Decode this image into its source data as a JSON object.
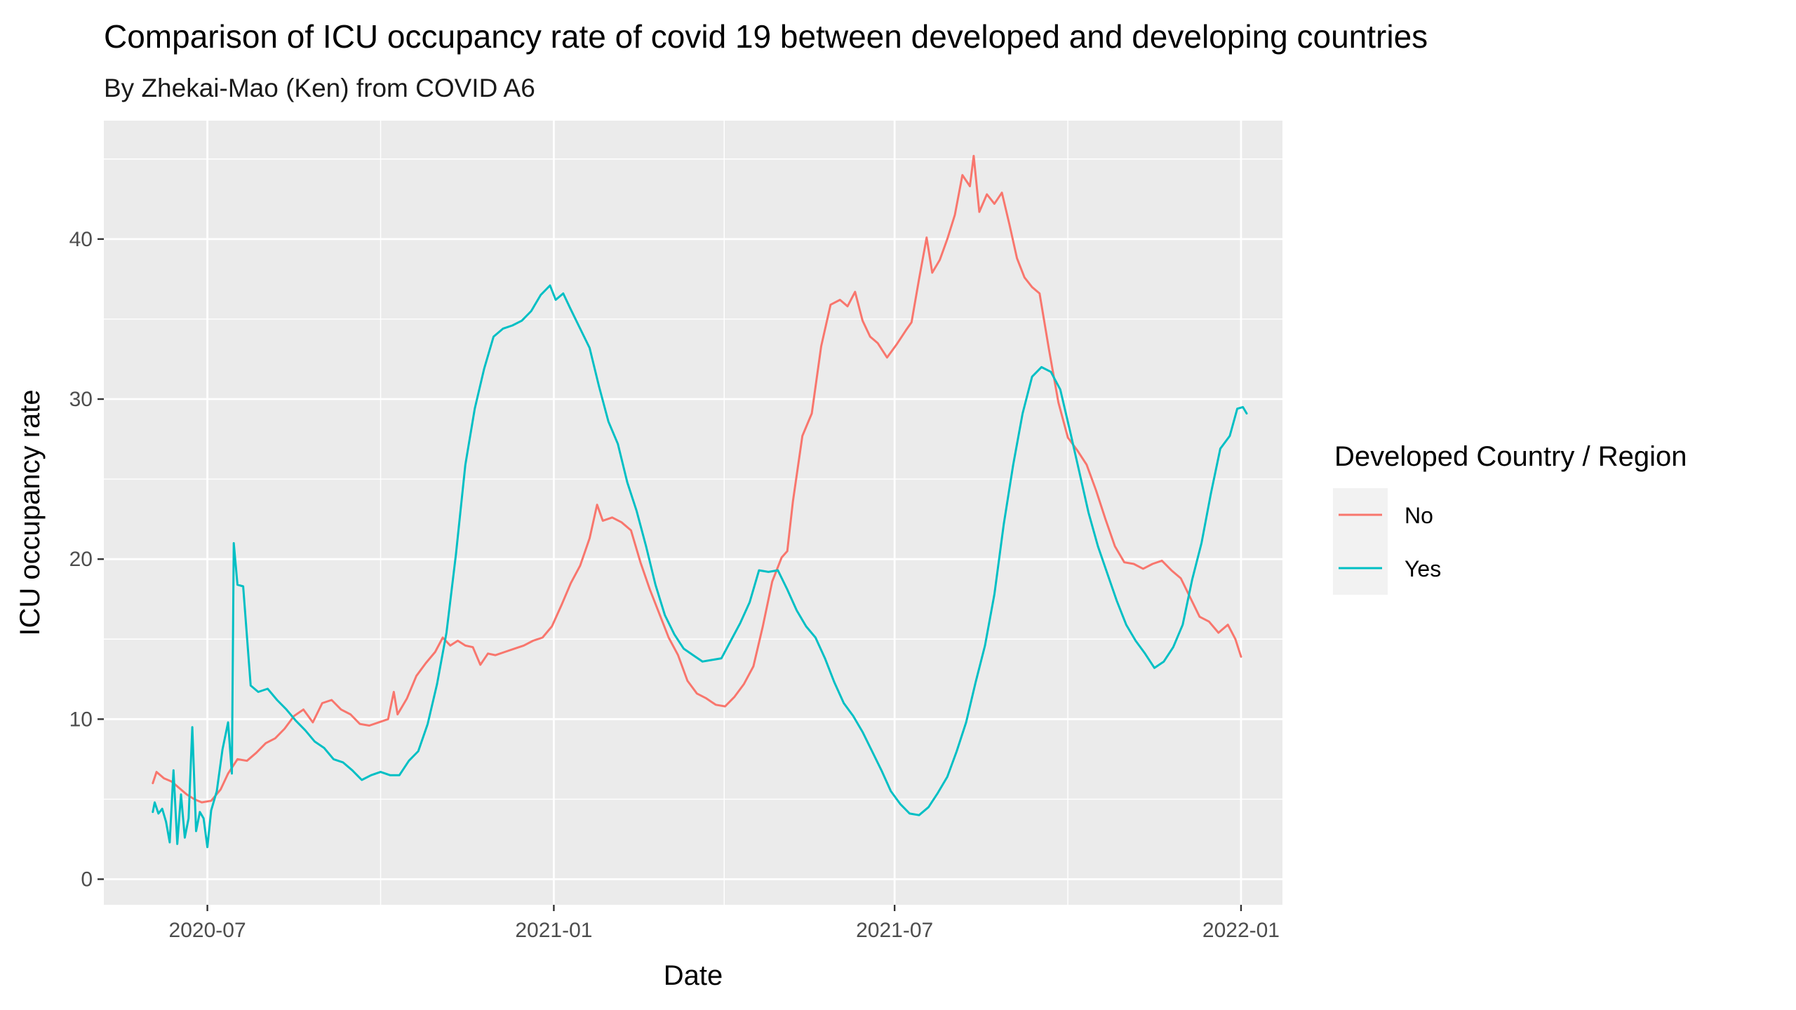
{
  "chart_data": {
    "type": "line",
    "title": "Comparison of ICU occupancy rate of covid 19 between developed and developing countries",
    "subtitle": "By Zhekai-Mao (Ken) from COVID A6",
    "xlabel": "Date",
    "ylabel": "ICU occupancy rate",
    "x_axis_type": "date",
    "xlim": [
      "2020-05-07",
      "2022-01-23"
    ],
    "ylim": [
      -1.6,
      47.4
    ],
    "x_ticks": [
      "2020-07-01",
      "2021-01-01",
      "2021-07-01",
      "2022-01-01"
    ],
    "x_tick_labels": [
      "2020-07",
      "2021-01",
      "2021-07",
      "2022-01"
    ],
    "y_ticks": [
      0,
      10,
      20,
      30,
      40
    ],
    "y_tick_labels": [
      "0",
      "10",
      "20",
      "30",
      "40"
    ],
    "grid": true,
    "legend": {
      "title": "Developed Country / Region",
      "position": "right",
      "entries": [
        "No",
        "Yes"
      ]
    },
    "series": [
      {
        "name": "No",
        "color": "#F8766D",
        "points": [
          [
            "2020-06-02",
            6.0
          ],
          [
            "2020-06-04",
            6.7
          ],
          [
            "2020-06-08",
            6.3
          ],
          [
            "2020-06-12",
            6.1
          ],
          [
            "2020-06-16",
            5.7
          ],
          [
            "2020-06-20",
            5.3
          ],
          [
            "2020-06-24",
            5.0
          ],
          [
            "2020-06-28",
            4.8
          ],
          [
            "2020-07-03",
            4.9
          ],
          [
            "2020-07-08",
            5.6
          ],
          [
            "2020-07-12",
            6.6
          ],
          [
            "2020-07-17",
            7.5
          ],
          [
            "2020-07-22",
            7.4
          ],
          [
            "2020-07-27",
            7.9
          ],
          [
            "2020-08-01",
            8.5
          ],
          [
            "2020-08-06",
            8.8
          ],
          [
            "2020-08-11",
            9.4
          ],
          [
            "2020-08-16",
            10.2
          ],
          [
            "2020-08-21",
            10.6
          ],
          [
            "2020-08-26",
            9.8
          ],
          [
            "2020-08-31",
            11.0
          ],
          [
            "2020-09-05",
            11.2
          ],
          [
            "2020-09-10",
            10.6
          ],
          [
            "2020-09-15",
            10.3
          ],
          [
            "2020-09-20",
            9.7
          ],
          [
            "2020-09-25",
            9.6
          ],
          [
            "2020-09-30",
            9.8
          ],
          [
            "2020-10-05",
            10.0
          ],
          [
            "2020-10-08",
            11.7
          ],
          [
            "2020-10-10",
            10.3
          ],
          [
            "2020-10-15",
            11.3
          ],
          [
            "2020-10-20",
            12.7
          ],
          [
            "2020-10-25",
            13.5
          ],
          [
            "2020-10-30",
            14.2
          ],
          [
            "2020-11-03",
            15.1
          ],
          [
            "2020-11-07",
            14.6
          ],
          [
            "2020-11-11",
            14.9
          ],
          [
            "2020-11-15",
            14.6
          ],
          [
            "2020-11-19",
            14.5
          ],
          [
            "2020-11-23",
            13.4
          ],
          [
            "2020-11-27",
            14.1
          ],
          [
            "2020-12-01",
            14.0
          ],
          [
            "2020-12-06",
            14.2
          ],
          [
            "2020-12-11",
            14.4
          ],
          [
            "2020-12-16",
            14.6
          ],
          [
            "2020-12-21",
            14.9
          ],
          [
            "2020-12-26",
            15.1
          ],
          [
            "2020-12-31",
            15.8
          ],
          [
            "2021-01-05",
            17.1
          ],
          [
            "2021-01-10",
            18.5
          ],
          [
            "2021-01-15",
            19.6
          ],
          [
            "2021-01-20",
            21.3
          ],
          [
            "2021-01-24",
            23.4
          ],
          [
            "2021-01-27",
            22.4
          ],
          [
            "2021-02-01",
            22.6
          ],
          [
            "2021-02-06",
            22.3
          ],
          [
            "2021-02-11",
            21.8
          ],
          [
            "2021-02-16",
            19.8
          ],
          [
            "2021-02-21",
            18.1
          ],
          [
            "2021-02-26",
            16.6
          ],
          [
            "2021-03-03",
            15.1
          ],
          [
            "2021-03-08",
            14.0
          ],
          [
            "2021-03-13",
            12.4
          ],
          [
            "2021-03-18",
            11.6
          ],
          [
            "2021-03-23",
            11.3
          ],
          [
            "2021-03-28",
            10.9
          ],
          [
            "2021-04-02",
            10.8
          ],
          [
            "2021-04-07",
            11.4
          ],
          [
            "2021-04-12",
            12.2
          ],
          [
            "2021-04-17",
            13.3
          ],
          [
            "2021-04-22",
            15.8
          ],
          [
            "2021-04-27",
            18.6
          ],
          [
            "2021-05-02",
            20.1
          ],
          [
            "2021-05-05",
            20.5
          ],
          [
            "2021-05-08",
            23.6
          ],
          [
            "2021-05-13",
            27.7
          ],
          [
            "2021-05-18",
            29.1
          ],
          [
            "2021-05-23",
            33.3
          ],
          [
            "2021-05-28",
            35.9
          ],
          [
            "2021-06-02",
            36.2
          ],
          [
            "2021-06-06",
            35.8
          ],
          [
            "2021-06-10",
            36.7
          ],
          [
            "2021-06-14",
            34.9
          ],
          [
            "2021-06-18",
            33.9
          ],
          [
            "2021-06-22",
            33.5
          ],
          [
            "2021-06-27",
            32.6
          ],
          [
            "2021-07-02",
            33.4
          ],
          [
            "2021-07-07",
            34.3
          ],
          [
            "2021-07-10",
            34.8
          ],
          [
            "2021-07-14",
            37.5
          ],
          [
            "2021-07-18",
            40.1
          ],
          [
            "2021-07-21",
            37.9
          ],
          [
            "2021-07-25",
            38.7
          ],
          [
            "2021-07-29",
            40.0
          ],
          [
            "2021-08-02",
            41.5
          ],
          [
            "2021-08-06",
            44.0
          ],
          [
            "2021-08-10",
            43.3
          ],
          [
            "2021-08-12",
            45.2
          ],
          [
            "2021-08-15",
            41.7
          ],
          [
            "2021-08-19",
            42.8
          ],
          [
            "2021-08-23",
            42.2
          ],
          [
            "2021-08-27",
            42.9
          ],
          [
            "2021-08-31",
            40.9
          ],
          [
            "2021-09-04",
            38.8
          ],
          [
            "2021-09-08",
            37.6
          ],
          [
            "2021-09-12",
            37.0
          ],
          [
            "2021-09-16",
            36.6
          ],
          [
            "2021-09-21",
            33.1
          ],
          [
            "2021-09-26",
            29.8
          ],
          [
            "2021-10-01",
            27.6
          ],
          [
            "2021-10-06",
            26.8
          ],
          [
            "2021-10-11",
            25.9
          ],
          [
            "2021-10-16",
            24.3
          ],
          [
            "2021-10-21",
            22.5
          ],
          [
            "2021-10-26",
            20.8
          ],
          [
            "2021-10-31",
            19.8
          ],
          [
            "2021-11-05",
            19.7
          ],
          [
            "2021-11-10",
            19.4
          ],
          [
            "2021-11-15",
            19.7
          ],
          [
            "2021-11-20",
            19.9
          ],
          [
            "2021-11-25",
            19.3
          ],
          [
            "2021-11-30",
            18.8
          ],
          [
            "2021-12-05",
            17.6
          ],
          [
            "2021-12-10",
            16.4
          ],
          [
            "2021-12-15",
            16.1
          ],
          [
            "2021-12-20",
            15.4
          ],
          [
            "2021-12-25",
            15.9
          ],
          [
            "2021-12-29",
            15.0
          ],
          [
            "2022-01-01",
            13.9
          ]
        ]
      },
      {
        "name": "Yes",
        "color": "#00BFC4",
        "points": [
          [
            "2020-06-02",
            4.2
          ],
          [
            "2020-06-03",
            4.8
          ],
          [
            "2020-06-05",
            4.1
          ],
          [
            "2020-06-07",
            4.4
          ],
          [
            "2020-06-09",
            3.6
          ],
          [
            "2020-06-11",
            2.3
          ],
          [
            "2020-06-13",
            6.8
          ],
          [
            "2020-06-15",
            2.2
          ],
          [
            "2020-06-17",
            5.3
          ],
          [
            "2020-06-19",
            2.6
          ],
          [
            "2020-06-21",
            3.8
          ],
          [
            "2020-06-23",
            9.5
          ],
          [
            "2020-06-25",
            3.0
          ],
          [
            "2020-06-27",
            4.2
          ],
          [
            "2020-06-29",
            3.8
          ],
          [
            "2020-07-01",
            2.0
          ],
          [
            "2020-07-03",
            4.3
          ],
          [
            "2020-07-06",
            5.5
          ],
          [
            "2020-07-09",
            8.1
          ],
          [
            "2020-07-12",
            9.8
          ],
          [
            "2020-07-14",
            6.6
          ],
          [
            "2020-07-15",
            21.0
          ],
          [
            "2020-07-17",
            18.4
          ],
          [
            "2020-07-20",
            18.3
          ],
          [
            "2020-07-24",
            12.1
          ],
          [
            "2020-07-28",
            11.7
          ],
          [
            "2020-08-02",
            11.9
          ],
          [
            "2020-08-07",
            11.2
          ],
          [
            "2020-08-12",
            10.6
          ],
          [
            "2020-08-17",
            9.9
          ],
          [
            "2020-08-22",
            9.3
          ],
          [
            "2020-08-27",
            8.6
          ],
          [
            "2020-09-01",
            8.2
          ],
          [
            "2020-09-06",
            7.5
          ],
          [
            "2020-09-11",
            7.3
          ],
          [
            "2020-09-16",
            6.8
          ],
          [
            "2020-09-21",
            6.2
          ],
          [
            "2020-09-26",
            6.5
          ],
          [
            "2020-10-01",
            6.7
          ],
          [
            "2020-10-06",
            6.5
          ],
          [
            "2020-10-11",
            6.5
          ],
          [
            "2020-10-16",
            7.4
          ],
          [
            "2020-10-21",
            8.0
          ],
          [
            "2020-10-26",
            9.7
          ],
          [
            "2020-10-31",
            12.2
          ],
          [
            "2020-11-05",
            15.4
          ],
          [
            "2020-11-10",
            20.3
          ],
          [
            "2020-11-15",
            25.9
          ],
          [
            "2020-11-20",
            29.4
          ],
          [
            "2020-11-25",
            31.9
          ],
          [
            "2020-11-30",
            33.9
          ],
          [
            "2020-12-05",
            34.4
          ],
          [
            "2020-12-10",
            34.6
          ],
          [
            "2020-12-15",
            34.9
          ],
          [
            "2020-12-20",
            35.5
          ],
          [
            "2020-12-25",
            36.5
          ],
          [
            "2020-12-30",
            37.1
          ],
          [
            "2021-01-02",
            36.2
          ],
          [
            "2021-01-06",
            36.6
          ],
          [
            "2021-01-10",
            35.6
          ],
          [
            "2021-01-15",
            34.4
          ],
          [
            "2021-01-20",
            33.2
          ],
          [
            "2021-01-25",
            30.8
          ],
          [
            "2021-01-30",
            28.6
          ],
          [
            "2021-02-04",
            27.2
          ],
          [
            "2021-02-09",
            24.8
          ],
          [
            "2021-02-14",
            23.0
          ],
          [
            "2021-02-19",
            20.8
          ],
          [
            "2021-02-24",
            18.4
          ],
          [
            "2021-03-01",
            16.5
          ],
          [
            "2021-03-06",
            15.3
          ],
          [
            "2021-03-11",
            14.4
          ],
          [
            "2021-03-16",
            14.0
          ],
          [
            "2021-03-21",
            13.6
          ],
          [
            "2021-03-26",
            13.7
          ],
          [
            "2021-03-31",
            13.8
          ],
          [
            "2021-04-05",
            14.9
          ],
          [
            "2021-04-10",
            16.0
          ],
          [
            "2021-04-15",
            17.3
          ],
          [
            "2021-04-20",
            19.3
          ],
          [
            "2021-04-25",
            19.2
          ],
          [
            "2021-04-30",
            19.3
          ],
          [
            "2021-05-05",
            18.1
          ],
          [
            "2021-05-10",
            16.8
          ],
          [
            "2021-05-15",
            15.8
          ],
          [
            "2021-05-20",
            15.1
          ],
          [
            "2021-05-25",
            13.8
          ],
          [
            "2021-05-30",
            12.3
          ],
          [
            "2021-06-04",
            11.0
          ],
          [
            "2021-06-09",
            10.2
          ],
          [
            "2021-06-14",
            9.2
          ],
          [
            "2021-06-19",
            8.0
          ],
          [
            "2021-06-24",
            6.8
          ],
          [
            "2021-06-29",
            5.5
          ],
          [
            "2021-07-04",
            4.7
          ],
          [
            "2021-07-09",
            4.1
          ],
          [
            "2021-07-14",
            4.0
          ],
          [
            "2021-07-19",
            4.5
          ],
          [
            "2021-07-24",
            5.4
          ],
          [
            "2021-07-29",
            6.4
          ],
          [
            "2021-08-03",
            8.0
          ],
          [
            "2021-08-08",
            9.8
          ],
          [
            "2021-08-13",
            12.3
          ],
          [
            "2021-08-18",
            14.6
          ],
          [
            "2021-08-23",
            17.8
          ],
          [
            "2021-08-28",
            22.2
          ],
          [
            "2021-09-02",
            25.9
          ],
          [
            "2021-09-07",
            29.1
          ],
          [
            "2021-09-12",
            31.4
          ],
          [
            "2021-09-17",
            32.0
          ],
          [
            "2021-09-22",
            31.7
          ],
          [
            "2021-09-27",
            30.6
          ],
          [
            "2021-10-02",
            28.1
          ],
          [
            "2021-10-07",
            25.5
          ],
          [
            "2021-10-12",
            22.9
          ],
          [
            "2021-10-17",
            20.8
          ],
          [
            "2021-10-22",
            19.1
          ],
          [
            "2021-10-27",
            17.4
          ],
          [
            "2021-11-01",
            15.9
          ],
          [
            "2021-11-06",
            14.9
          ],
          [
            "2021-11-11",
            14.1
          ],
          [
            "2021-11-16",
            13.2
          ],
          [
            "2021-11-21",
            13.6
          ],
          [
            "2021-11-26",
            14.5
          ],
          [
            "2021-12-01",
            15.9
          ],
          [
            "2021-12-06",
            18.7
          ],
          [
            "2021-12-11",
            21.0
          ],
          [
            "2021-12-16",
            24.1
          ],
          [
            "2021-12-21",
            26.9
          ],
          [
            "2021-12-26",
            27.7
          ],
          [
            "2021-12-30",
            29.4
          ],
          [
            "2022-01-02",
            29.5
          ],
          [
            "2022-01-04",
            29.1
          ]
        ]
      }
    ]
  }
}
